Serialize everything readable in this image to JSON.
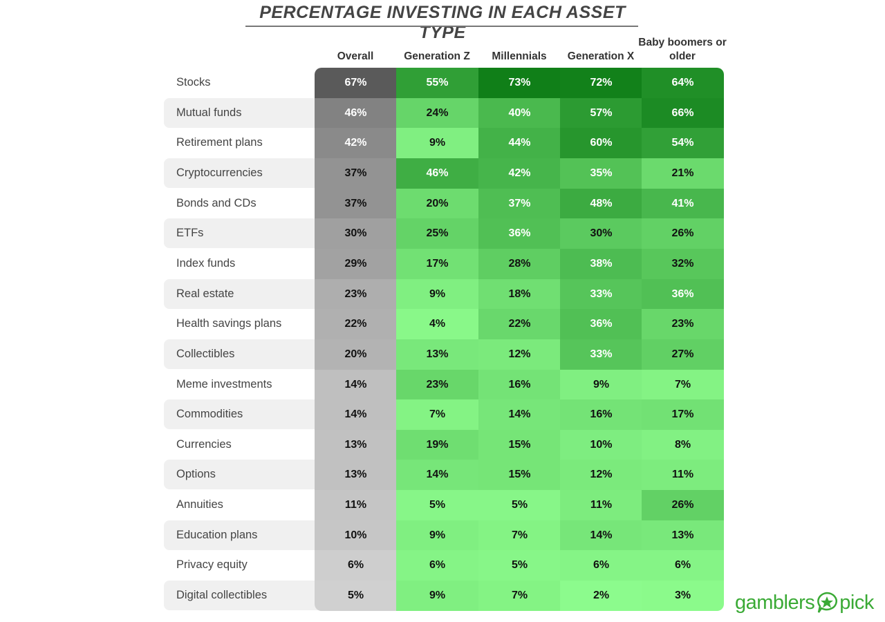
{
  "chart_data": {
    "type": "heatmap",
    "title": "PERCENTAGE INVESTING IN EACH ASSET TYPE",
    "columns": [
      "Overall",
      "Generation Z",
      "Millennials",
      "Generation X",
      "Baby boomers or older"
    ],
    "rows": [
      "Stocks",
      "Mutual funds",
      "Retirement plans",
      "Cryptocurrencies",
      "Bonds and CDs",
      "ETFs",
      "Index funds",
      "Real estate",
      "Health savings plans",
      "Collectibles",
      "Meme investments",
      "Commodities",
      "Currencies",
      "Options",
      "Annuities",
      "Education plans",
      "Privacy equity",
      "Digital collectibles"
    ],
    "values": [
      [
        67,
        55,
        73,
        72,
        64
      ],
      [
        46,
        24,
        40,
        57,
        66
      ],
      [
        42,
        9,
        44,
        60,
        54
      ],
      [
        37,
        46,
        42,
        35,
        21
      ],
      [
        37,
        20,
        37,
        48,
        41
      ],
      [
        30,
        25,
        36,
        30,
        26
      ],
      [
        29,
        17,
        28,
        38,
        32
      ],
      [
        23,
        9,
        18,
        33,
        36
      ],
      [
        22,
        4,
        22,
        36,
        23
      ],
      [
        20,
        13,
        12,
        33,
        27
      ],
      [
        14,
        23,
        16,
        9,
        7
      ],
      [
        14,
        7,
        14,
        16,
        17
      ],
      [
        13,
        19,
        15,
        10,
        8
      ],
      [
        13,
        14,
        15,
        12,
        11
      ],
      [
        11,
        5,
        5,
        11,
        26
      ],
      [
        10,
        9,
        7,
        14,
        13
      ],
      [
        6,
        6,
        5,
        6,
        6
      ],
      [
        5,
        9,
        7,
        2,
        3
      ]
    ],
    "unit": "%",
    "color_scale": {
      "overall": [
        "#d0d0d0",
        "#5a5a5a"
      ],
      "generations": [
        "#90ff90",
        "#107f18"
      ]
    }
  },
  "logo": {
    "left": "gamblers",
    "right": "pick",
    "color": "#3aaa35"
  }
}
